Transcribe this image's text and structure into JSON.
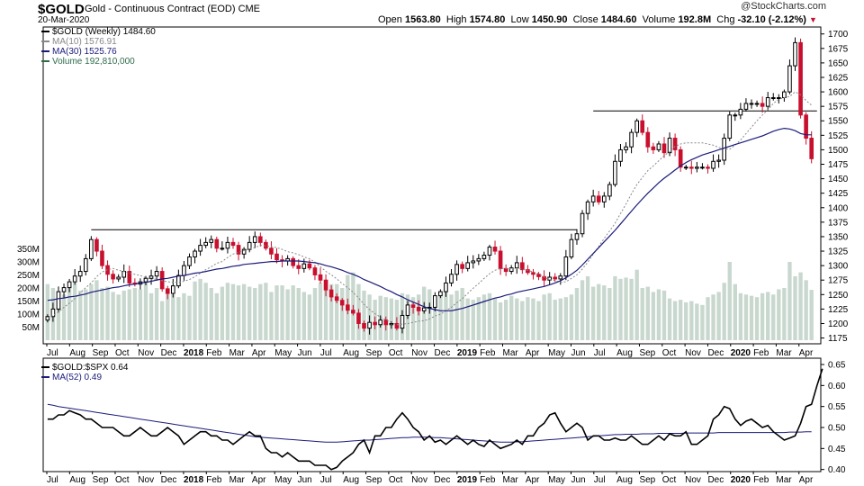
{
  "header": {
    "symbol": "$GOLD",
    "description": "Gold - Continuous Contract (EOD)",
    "exchange": "CME",
    "date": "20-Mar-2020",
    "brand": "@StockCharts.com",
    "open_label": "Open",
    "open": "1563.80",
    "high_label": "High",
    "high": "1574.80",
    "low_label": "Low",
    "low": "1450.90",
    "close_label": "Close",
    "close": "1484.60",
    "volume_label": "Volume",
    "volume": "192.8M",
    "chg_label": "Chg",
    "chg": "-32.10 (-2.12%)"
  },
  "colors": {
    "up": "#000000",
    "down": "#c8102e",
    "ma10": "#888888",
    "ma30": "#1a1a7a",
    "volume": "#c9d8cf",
    "ratio": "#000000",
    "ratio_ma": "#1a1a7a"
  },
  "chart_data": [
    {
      "type": "candlestick",
      "title": "$GOLD (Weekly) 1484.60",
      "legend": [
        {
          "label": "$GOLD (Weekly) 1484.60",
          "color": "#000000"
        },
        {
          "label": "MA(10) 1576.91",
          "color": "#888888"
        },
        {
          "label": "MA(30) 1525.76",
          "color": "#1a1a7a"
        },
        {
          "label": "Volume 192,810,000",
          "color": "#2e6b4a"
        }
      ],
      "x_ticks": [
        "Jul",
        "Aug",
        "Sep",
        "Oct",
        "Nov",
        "Dec",
        "2018",
        "Feb",
        "Mar",
        "Apr",
        "May",
        "Jun",
        "Jul",
        "Aug",
        "Sep",
        "Oct",
        "Nov",
        "Dec",
        "2019",
        "Feb",
        "Mar",
        "Apr",
        "May",
        "Jun",
        "Jul",
        "Aug",
        "Sep",
        "Oct",
        "Nov",
        "Dec",
        "2020",
        "Feb",
        "Mar",
        "Apr"
      ],
      "y_ticks": [
        1175,
        1200,
        1225,
        1250,
        1275,
        1300,
        1325,
        1350,
        1375,
        1400,
        1425,
        1450,
        1475,
        1500,
        1525,
        1550,
        1575,
        1600,
        1625,
        1650,
        1675,
        1700
      ],
      "ylim": [
        1165,
        1712
      ],
      "volume_ticks": [
        "50M",
        "100M",
        "150M",
        "200M",
        "250M",
        "300M",
        "350M"
      ],
      "volume_ylim": [
        0,
        400
      ],
      "close": [
        1212,
        1225,
        1255,
        1262,
        1272,
        1282,
        1290,
        1312,
        1345,
        1325,
        1300,
        1285,
        1277,
        1280,
        1290,
        1270,
        1268,
        1272,
        1278,
        1282,
        1290,
        1260,
        1252,
        1265,
        1283,
        1300,
        1315,
        1325,
        1335,
        1340,
        1345,
        1330,
        1330,
        1340,
        1335,
        1320,
        1328,
        1340,
        1350,
        1340,
        1330,
        1320,
        1310,
        1308,
        1312,
        1300,
        1295,
        1303,
        1296,
        1284,
        1275,
        1258,
        1246,
        1240,
        1232,
        1223,
        1218,
        1200,
        1192,
        1202,
        1198,
        1206,
        1198,
        1200,
        1192,
        1214,
        1232,
        1228,
        1222,
        1227,
        1228,
        1248,
        1255,
        1270,
        1285,
        1302,
        1295,
        1305,
        1308,
        1312,
        1318,
        1332,
        1325,
        1295,
        1290,
        1296,
        1305,
        1293,
        1288,
        1285,
        1281,
        1275,
        1280,
        1277,
        1282,
        1315,
        1345,
        1355,
        1390,
        1410,
        1420,
        1410,
        1420,
        1440,
        1480,
        1500,
        1505,
        1530,
        1550,
        1530,
        1505,
        1500,
        1510,
        1495,
        1520,
        1500,
        1470,
        1470,
        1468,
        1470,
        1470,
        1468,
        1480,
        1482,
        1520,
        1560,
        1560,
        1570,
        1580,
        1580,
        1580,
        1575,
        1590,
        1590,
        1590,
        1600,
        1645,
        1685,
        1560,
        1520,
        1484.6
      ],
      "ma10": [
        1210,
        1214,
        1220,
        1228,
        1235,
        1243,
        1253,
        1262,
        1270,
        1281,
        1289,
        1293,
        1295,
        1292,
        1290,
        1287,
        1285,
        1283,
        1279,
        1276,
        1277,
        1274,
        1272,
        1271,
        1271,
        1273,
        1276,
        1281,
        1287,
        1293,
        1298,
        1304,
        1307,
        1314,
        1320,
        1323,
        1326,
        1329,
        1331,
        1335,
        1334,
        1333,
        1331,
        1328,
        1324,
        1322,
        1319,
        1315,
        1312,
        1306,
        1298,
        1290,
        1284,
        1277,
        1269,
        1262,
        1254,
        1244,
        1233,
        1224,
        1217,
        1211,
        1206,
        1202,
        1198,
        1199,
        1200,
        1202,
        1204,
        1205,
        1208,
        1213,
        1216,
        1222,
        1228,
        1236,
        1243,
        1252,
        1261,
        1269,
        1278,
        1286,
        1292,
        1295,
        1295,
        1294,
        1295,
        1294,
        1292,
        1289,
        1286,
        1280,
        1276,
        1274,
        1271,
        1272,
        1278,
        1284,
        1294,
        1306,
        1320,
        1333,
        1347,
        1360,
        1373,
        1390,
        1406,
        1424,
        1440,
        1452,
        1464,
        1472,
        1481,
        1490,
        1497,
        1506,
        1510,
        1512,
        1512,
        1512,
        1512,
        1510,
        1508,
        1504,
        1502,
        1501,
        1508,
        1517,
        1528,
        1539,
        1550,
        1560,
        1569,
        1580,
        1587,
        1590,
        1592,
        1600,
        1595,
        1585,
        1577
      ],
      "ma30": [
        1240,
        1241,
        1243,
        1244,
        1246,
        1247,
        1249,
        1251,
        1254,
        1256,
        1258,
        1260,
        1262,
        1263,
        1265,
        1267,
        1268,
        1270,
        1271,
        1273,
        1275,
        1277,
        1278,
        1280,
        1282,
        1283,
        1285,
        1287,
        1288,
        1290,
        1292,
        1294,
        1295,
        1297,
        1299,
        1300,
        1302,
        1303,
        1304,
        1305,
        1306,
        1307,
        1307,
        1308,
        1308,
        1308,
        1308,
        1307,
        1306,
        1305,
        1303,
        1300,
        1298,
        1295,
        1292,
        1288,
        1285,
        1281,
        1276,
        1272,
        1268,
        1264,
        1259,
        1255,
        1250,
        1246,
        1241,
        1237,
        1233,
        1229,
        1226,
        1224,
        1222,
        1222,
        1222,
        1224,
        1226,
        1229,
        1232,
        1235,
        1238,
        1241,
        1244,
        1246,
        1249,
        1251,
        1254,
        1256,
        1258,
        1260,
        1262,
        1264,
        1267,
        1270,
        1274,
        1279,
        1285,
        1292,
        1301,
        1311,
        1321,
        1331,
        1341,
        1351,
        1361,
        1372,
        1383,
        1394,
        1405,
        1415,
        1425,
        1434,
        1443,
        1451,
        1458,
        1465,
        1472,
        1478,
        1483,
        1487,
        1491,
        1494,
        1497,
        1500,
        1503,
        1506,
        1509,
        1512,
        1515,
        1518,
        1521,
        1524,
        1528,
        1532,
        1535,
        1537,
        1536,
        1533,
        1528,
        1526,
        1525.76
      ],
      "volume": [
        215,
        200,
        180,
        175,
        215,
        220,
        190,
        195,
        215,
        230,
        200,
        205,
        185,
        175,
        190,
        195,
        200,
        195,
        240,
        180,
        200,
        150,
        195,
        175,
        165,
        180,
        170,
        225,
        235,
        220,
        200,
        180,
        205,
        220,
        215,
        210,
        215,
        205,
        200,
        215,
        220,
        185,
        210,
        210,
        195,
        210,
        200,
        185,
        175,
        200,
        220,
        230,
        215,
        215,
        200,
        250,
        260,
        215,
        190,
        175,
        155,
        170,
        165,
        160,
        155,
        180,
        175,
        165,
        175,
        205,
        195,
        165,
        180,
        200,
        175,
        190,
        200,
        160,
        155,
        165,
        175,
        180,
        160,
        145,
        155,
        170,
        160,
        150,
        165,
        160,
        150,
        175,
        180,
        155,
        160,
        165,
        175,
        200,
        230,
        245,
        205,
        215,
        210,
        200,
        245,
        235,
        240,
        235,
        270,
        200,
        205,
        185,
        195,
        190,
        160,
        150,
        155,
        145,
        150,
        140,
        135,
        165,
        175,
        185,
        220,
        300,
        215,
        180,
        175,
        170,
        165,
        180,
        185,
        175,
        195,
        200,
        300,
        245,
        260,
        230,
        192.8
      ]
    },
    {
      "type": "line",
      "legend": [
        {
          "label": "$GOLD:$SPX 0.64",
          "color": "#000000"
        },
        {
          "label": "MA(52) 0.49",
          "color": "#1a1a7a"
        }
      ],
      "y_ticks": [
        0.4,
        0.45,
        0.5,
        0.55,
        0.6,
        0.65
      ],
      "ylim": [
        0.395,
        0.665
      ],
      "ratio": [
        0.52,
        0.52,
        0.53,
        0.53,
        0.54,
        0.535,
        0.53,
        0.52,
        0.52,
        0.51,
        0.5,
        0.5,
        0.5,
        0.49,
        0.48,
        0.48,
        0.49,
        0.5,
        0.49,
        0.48,
        0.48,
        0.49,
        0.5,
        0.49,
        0.48,
        0.46,
        0.47,
        0.48,
        0.49,
        0.49,
        0.48,
        0.48,
        0.47,
        0.47,
        0.46,
        0.47,
        0.48,
        0.49,
        0.48,
        0.48,
        0.45,
        0.44,
        0.44,
        0.43,
        0.44,
        0.43,
        0.42,
        0.42,
        0.42,
        0.41,
        0.41,
        0.41,
        0.4,
        0.405,
        0.42,
        0.43,
        0.44,
        0.46,
        0.47,
        0.44,
        0.48,
        0.48,
        0.5,
        0.5,
        0.52,
        0.535,
        0.52,
        0.5,
        0.49,
        0.47,
        0.48,
        0.465,
        0.47,
        0.46,
        0.47,
        0.48,
        0.47,
        0.46,
        0.47,
        0.46,
        0.455,
        0.47,
        0.46,
        0.45,
        0.455,
        0.46,
        0.47,
        0.46,
        0.48,
        0.48,
        0.5,
        0.51,
        0.53,
        0.535,
        0.51,
        0.49,
        0.5,
        0.51,
        0.5,
        0.47,
        0.48,
        0.48,
        0.47,
        0.47,
        0.475,
        0.47,
        0.47,
        0.48,
        0.47,
        0.46,
        0.46,
        0.47,
        0.48,
        0.47,
        0.485,
        0.48,
        0.48,
        0.49,
        0.46,
        0.46,
        0.47,
        0.48,
        0.52,
        0.53,
        0.55,
        0.545,
        0.52,
        0.505,
        0.515,
        0.52,
        0.51,
        0.5,
        0.505,
        0.49,
        0.48,
        0.47,
        0.475,
        0.48,
        0.51,
        0.55,
        0.555,
        0.6,
        0.64
      ],
      "ma52": [
        0.555,
        0.553,
        0.55,
        0.548,
        0.546,
        0.544,
        0.542,
        0.54,
        0.538,
        0.536,
        0.534,
        0.532,
        0.53,
        0.528,
        0.526,
        0.524,
        0.522,
        0.52,
        0.518,
        0.516,
        0.514,
        0.512,
        0.51,
        0.508,
        0.506,
        0.504,
        0.502,
        0.5,
        0.498,
        0.496,
        0.494,
        0.492,
        0.49,
        0.488,
        0.486,
        0.484,
        0.482,
        0.48,
        0.478,
        0.477,
        0.476,
        0.475,
        0.474,
        0.473,
        0.472,
        0.471,
        0.47,
        0.469,
        0.468,
        0.467,
        0.466,
        0.465,
        0.465,
        0.465,
        0.466,
        0.467,
        0.468,
        0.469,
        0.47,
        0.47,
        0.471,
        0.472,
        0.473,
        0.474,
        0.475,
        0.476,
        0.476,
        0.477,
        0.477,
        0.477,
        0.477,
        0.476,
        0.476,
        0.475,
        0.474,
        0.473,
        0.472,
        0.471,
        0.47,
        0.469,
        0.468,
        0.467,
        0.466,
        0.465,
        0.465,
        0.465,
        0.466,
        0.466,
        0.467,
        0.468,
        0.469,
        0.47,
        0.471,
        0.472,
        0.473,
        0.474,
        0.475,
        0.476,
        0.477,
        0.478,
        0.479,
        0.48,
        0.481,
        0.482,
        0.483,
        0.483,
        0.484,
        0.484,
        0.484,
        0.485,
        0.485,
        0.485,
        0.486,
        0.486,
        0.486,
        0.486,
        0.486,
        0.487,
        0.487,
        0.487,
        0.487,
        0.487,
        0.487,
        0.488,
        0.488,
        0.488,
        0.488,
        0.488,
        0.488,
        0.488,
        0.488,
        0.488,
        0.488,
        0.488,
        0.488,
        0.488,
        0.489,
        0.489,
        0.489,
        0.49,
        0.49
      ]
    }
  ]
}
